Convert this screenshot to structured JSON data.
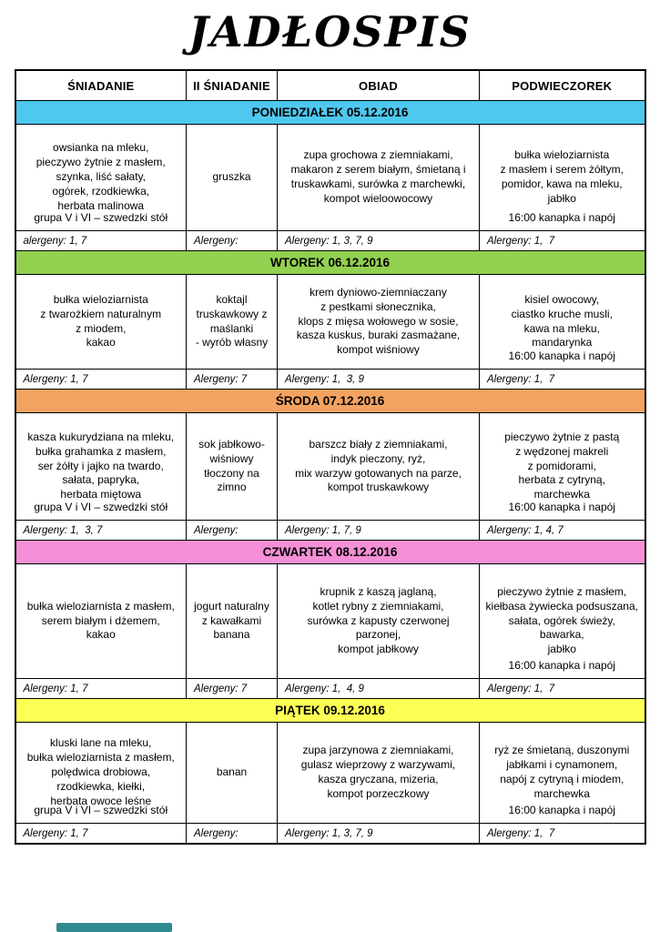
{
  "title": "JADŁOSPIS",
  "columns": [
    "ŚNIADANIE",
    "II ŚNIADANIE",
    "OBIAD",
    "PODWIECZOREK"
  ],
  "footer_bar_color": "#2f8b8f",
  "days": [
    {
      "name": "PONIEDZIAŁEK 05.12.2016",
      "color": "#4fc8f0",
      "breakfast": "owsianka na mleku,\npieczywo żytnie z masłem,\nszynka, liść sałaty,\nogórek, rzodkiewka,\nherbata malinowa",
      "breakfast_note": "grupa V i VI – szwedzki stół",
      "second_breakfast": "gruszka",
      "lunch": "zupa grochowa z ziemniakami,\nmakaron z serem białym, śmietaną i\ntruskawkami, surówka z marchewki,\nkompot wieloowocowy",
      "snack": "bułka wieloziarnista\nz masłem i serem żółtym,\npomidor, kawa na mleku,\njabłko",
      "snack_note": "16:00 kanapka i napój",
      "allergens": [
        "alergeny: 1, 7",
        "Alergeny:",
        "Alergeny: 1, 3, 7, 9",
        "Alergeny: 1,  7"
      ]
    },
    {
      "name": "WTOREK 06.12.2016",
      "color": "#92d050",
      "breakfast": "bułka wieloziarnista\nz twarożkiem naturalnym\nz miodem,\nkakao",
      "second_breakfast": "koktajl\ntruskawkowy z\nmaślanki\n- wyrób własny",
      "lunch": "krem dyniowo-ziemniaczany\nz pestkami słonecznika,\nklops z mięsa wołowego w sosie,\nkasza kuskus, buraki zasmażane,\nkompot wiśniowy",
      "snack": "kisiel owocowy,\nciastko kruche musli,\nkawa na mleku,\nmandarynka",
      "snack_note": "16:00 kanapka i napój",
      "allergens": [
        "Alergeny: 1, 7",
        "Alergeny: 7",
        "Alergeny: 1,  3, 9",
        "Alergeny: 1,  7"
      ]
    },
    {
      "name": "ŚRODA 07.12.2016",
      "color": "#f3a260",
      "breakfast": "kasza kukurydziana na mleku,\nbułka grahamka z masłem,\nser żółty i jajko na twardo,\nsałata, papryka,\nherbata miętowa",
      "breakfast_note": "grupa V i VI – szwedzki stół",
      "second_breakfast": "sok jabłkowo-\nwiśniowy\ntłoczony na\nzimno",
      "lunch": "barszcz biały z ziemniakami,\nindyk pieczony, ryż,\nmix warzyw gotowanych na parze,\nkompot truskawkowy",
      "snack": "pieczywo żytnie z pastą\nz wędzonej makreli\nz pomidorami,\nherbata z cytryną,\nmarchewka",
      "snack_note": "16:00 kanapka i napój",
      "allergens": [
        "Alergeny: 1,  3, 7",
        "Alergeny:",
        "Alergeny: 1, 7, 9",
        "Alergeny: 1, 4, 7"
      ]
    },
    {
      "name": "CZWARTEK 08.12.2016",
      "color": "#f58fd7",
      "breakfast": "bułka wieloziarnista z masłem,\nserem białym i dżemem,\nkakao",
      "second_breakfast": "jogurt naturalny\nz kawałkami\nbanana",
      "lunch": "krupnik z kaszą jaglaną,\nkotlet rybny z ziemniakami,\nsurówka z kapusty czerwonej\nparzonej,\nkompot jabłkowy",
      "snack": "pieczywo żytnie z masłem,\nkiełbasa żywiecka podsuszana,\nsałata, ogórek świeży,\nbawarka,\njabłko",
      "snack_note": "16:00 kanapka i napój",
      "allergens": [
        "Alergeny: 1, 7",
        "Alergeny: 7",
        "Alergeny: 1,  4, 9",
        "Alergeny: 1,  7"
      ]
    },
    {
      "name": "PIĄTEK 09.12.2016",
      "color": "#feff54",
      "breakfast": "kluski lane na mleku,\nbułka wieloziarnista z masłem,\npolędwica drobiowa,\nrzodkiewka, kiełki,\nherbata owoce leśne",
      "breakfast_note": "grupa V i VI – szwedzki stół",
      "second_breakfast": "banan",
      "lunch": "zupa jarzynowa z ziemniakami,\ngulasz wieprzowy z warzywami,\nkasza gryczana, mizeria,\nkompot porzeczkowy",
      "snack": "ryż ze śmietaną, duszonymi\njabłkami i cynamonem,\nnapój z cytryną i miodem,\nmarchewka",
      "snack_note": "16:00 kanapka i napój",
      "allergens": [
        "Alergeny: 1, 7",
        "Alergeny:",
        "Alergeny: 1, 3, 7, 9",
        "Alergeny: 1,  7"
      ]
    }
  ]
}
